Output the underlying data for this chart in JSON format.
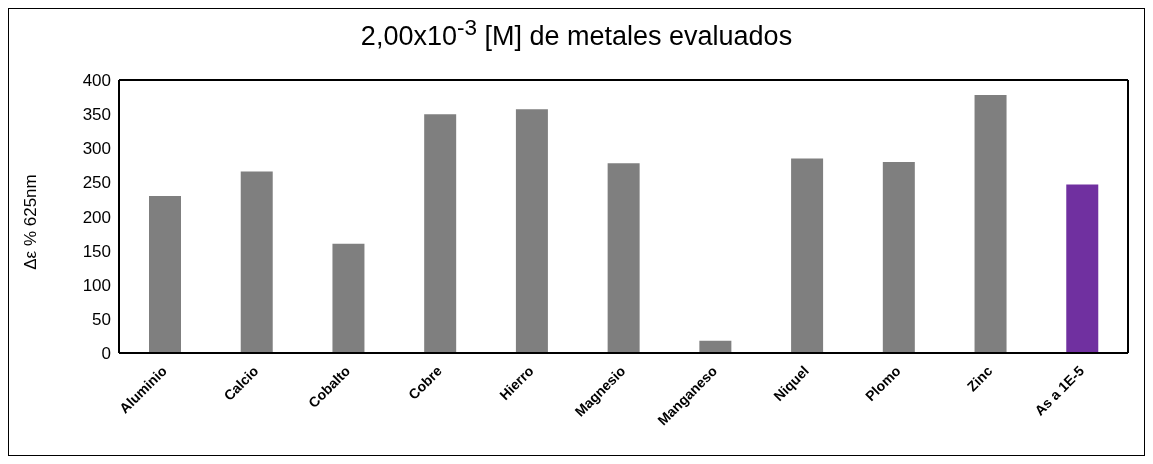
{
  "chart_data": {
    "type": "bar",
    "title": "2,00x10$^{-3}$ [M] de metales evaluados",
    "ylabel": "Δε % 625nm",
    "categories": [
      "Aluminio",
      "Calcio",
      "Cobalto",
      "Cobre",
      "Hierro",
      "Magnesio",
      "Manganeso",
      "Niquel",
      "Plomo",
      "Zinc",
      "As a 1E-5"
    ],
    "values": [
      230,
      266,
      160,
      350,
      357,
      278,
      18,
      285,
      280,
      378,
      247
    ],
    "colors": [
      "#7f7f7f",
      "#7f7f7f",
      "#7f7f7f",
      "#7f7f7f",
      "#7f7f7f",
      "#7f7f7f",
      "#7f7f7f",
      "#7f7f7f",
      "#7f7f7f",
      "#7f7f7f",
      "#7030a0"
    ],
    "ylim": [
      0,
      400
    ],
    "yticks": [
      0,
      50,
      100,
      150,
      200,
      250,
      300,
      350,
      400
    ],
    "grid": false,
    "legend": false
  }
}
